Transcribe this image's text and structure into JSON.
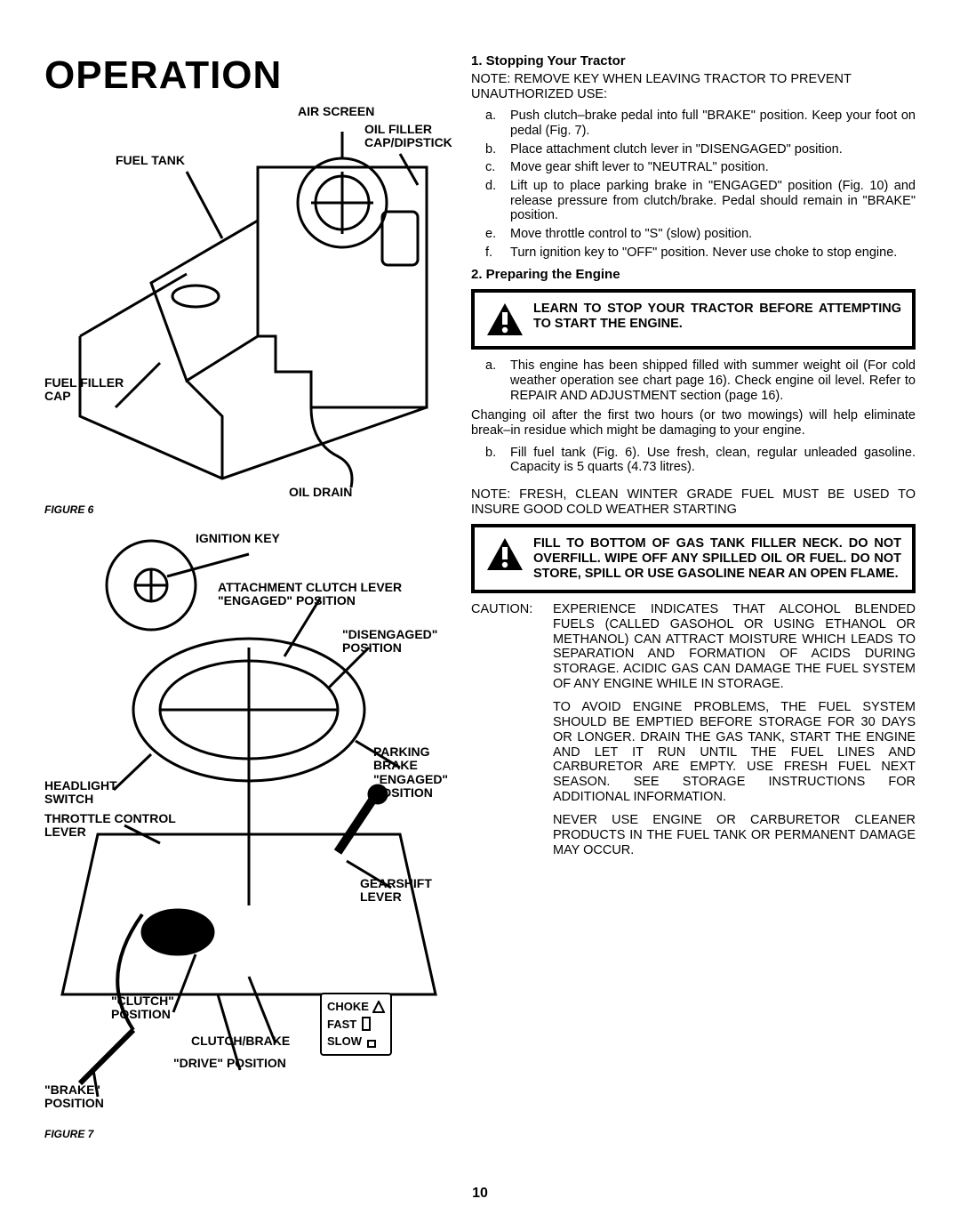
{
  "title": "OPERATION",
  "page_number": "10",
  "figure6": {
    "caption": "FIGURE 6",
    "labels": {
      "air_screen": "AIR SCREEN",
      "oil_filler": "OIL FILLER CAP/DIPSTICK",
      "fuel_tank": "FUEL TANK",
      "fuel_filler_cap": "FUEL FILLER CAP",
      "oil_drain": "OIL DRAIN"
    }
  },
  "figure7": {
    "caption": "FIGURE 7",
    "labels": {
      "ignition_key": "IGNITION KEY",
      "attachment_clutch": "ATTACHMENT CLUTCH LEVER \"ENGAGED\" POSITION",
      "disengaged": "\"DISENGAGED\" POSITION",
      "headlight": "HEADLIGHT SWITCH",
      "parking_brake": "PARKING BRAKE \"ENGAGED\" POSITION",
      "throttle": "THROTTLE CONTROL LEVER",
      "gearshift": "GEARSHIFT LEVER",
      "clutch_pos": "\"CLUTCH\" POSITION",
      "clutch_brake": "CLUTCH/BRAKE",
      "drive_pos": "\"DRIVE\" POSITION",
      "brake_pos": "\"BRAKE\" POSITION",
      "choke": "CHOKE",
      "fast": "FAST",
      "slow": "SLOW"
    }
  },
  "right": {
    "s1_head": "1. Stopping Your Tractor",
    "s1_note": "NOTE: REMOVE KEY WHEN LEAVING TRACTOR TO PREVENT UNAUTHORIZED USE:",
    "s1_items": [
      {
        "m": "a.",
        "t": "Push clutch–brake pedal into full \"BRAKE\" position. Keep your foot on pedal (Fig. 7)."
      },
      {
        "m": "b.",
        "t": "Place attachment clutch lever in \"DISENGAGED\" position."
      },
      {
        "m": "c.",
        "t": "Move gear shift lever to \"NEUTRAL\" position."
      },
      {
        "m": "d.",
        "t": "Lift up to place parking brake in \"ENGAGED\" position (Fig. 10) and release pressure from clutch/brake. Pedal should remain in \"BRAKE\" position."
      },
      {
        "m": "e.",
        "t": "Move throttle control to \"S\" (slow) position."
      },
      {
        "m": "f.",
        "t": "Turn ignition key to \"OFF\" position. Never use choke to stop engine."
      }
    ],
    "s2_head": "2. Preparing the Engine",
    "warn1": "LEARN TO STOP YOUR TRACTOR BEFORE ATTEMPTING TO START THE ENGINE.",
    "s2_a": "This engine has been shipped filled with summer weight oil (For cold weather operation see chart page 16). Check engine oil level. Refer to REPAIR AND ADJUSTMENT section (page 16).",
    "s2_change": "Changing oil after the first two hours (or two mowings) will help eliminate break–in residue which might be damaging to your engine.",
    "s2_b": "Fill fuel tank (Fig. 6). Use fresh, clean, regular unleaded gasoline. Capacity is 5 quarts (4.73 litres).",
    "s2_note2": "NOTE: FRESH, CLEAN WINTER GRADE FUEL MUST BE USED TO INSURE GOOD COLD WEATHER STARTING",
    "warn2": "FILL TO BOTTOM OF GAS TANK FILLER NECK. DO NOT OVERFILL. WIPE OFF ANY SPILLED OIL OR FUEL. DO NOT STORE, SPILL OR USE GASOLINE NEAR AN OPEN FLAME.",
    "caution_prefix": "CAUTION:",
    "caution": "EXPERIENCE INDICATES THAT ALCOHOL BLENDED FUELS (CALLED GASOHOL OR USING ETHANOL OR METHANOL) CAN ATTRACT MOISTURE WHICH LEADS TO SEPARATION AND FORMATION OF ACIDS DURING STORAGE. ACIDIC GAS CAN DAMAGE THE FUEL SYSTEM OF ANY ENGINE WHILE IN STORAGE.",
    "caution2": "TO AVOID ENGINE PROBLEMS, THE FUEL SYSTEM SHOULD BE EMPTIED BEFORE STORAGE FOR 30 DAYS OR LONGER. DRAIN THE GAS TANK, START THE ENGINE AND LET IT RUN UNTIL THE FUEL LINES AND CARBURETOR ARE EMPTY. USE FRESH FUEL NEXT SEASON. SEE STORAGE INSTRUCTIONS FOR ADDITIONAL INFORMATION.",
    "caution3": "NEVER USE ENGINE OR CARBURETOR CLEANER PRODUCTS IN THE FUEL TANK OR PERMANENT DAMAGE MAY OCCUR."
  }
}
